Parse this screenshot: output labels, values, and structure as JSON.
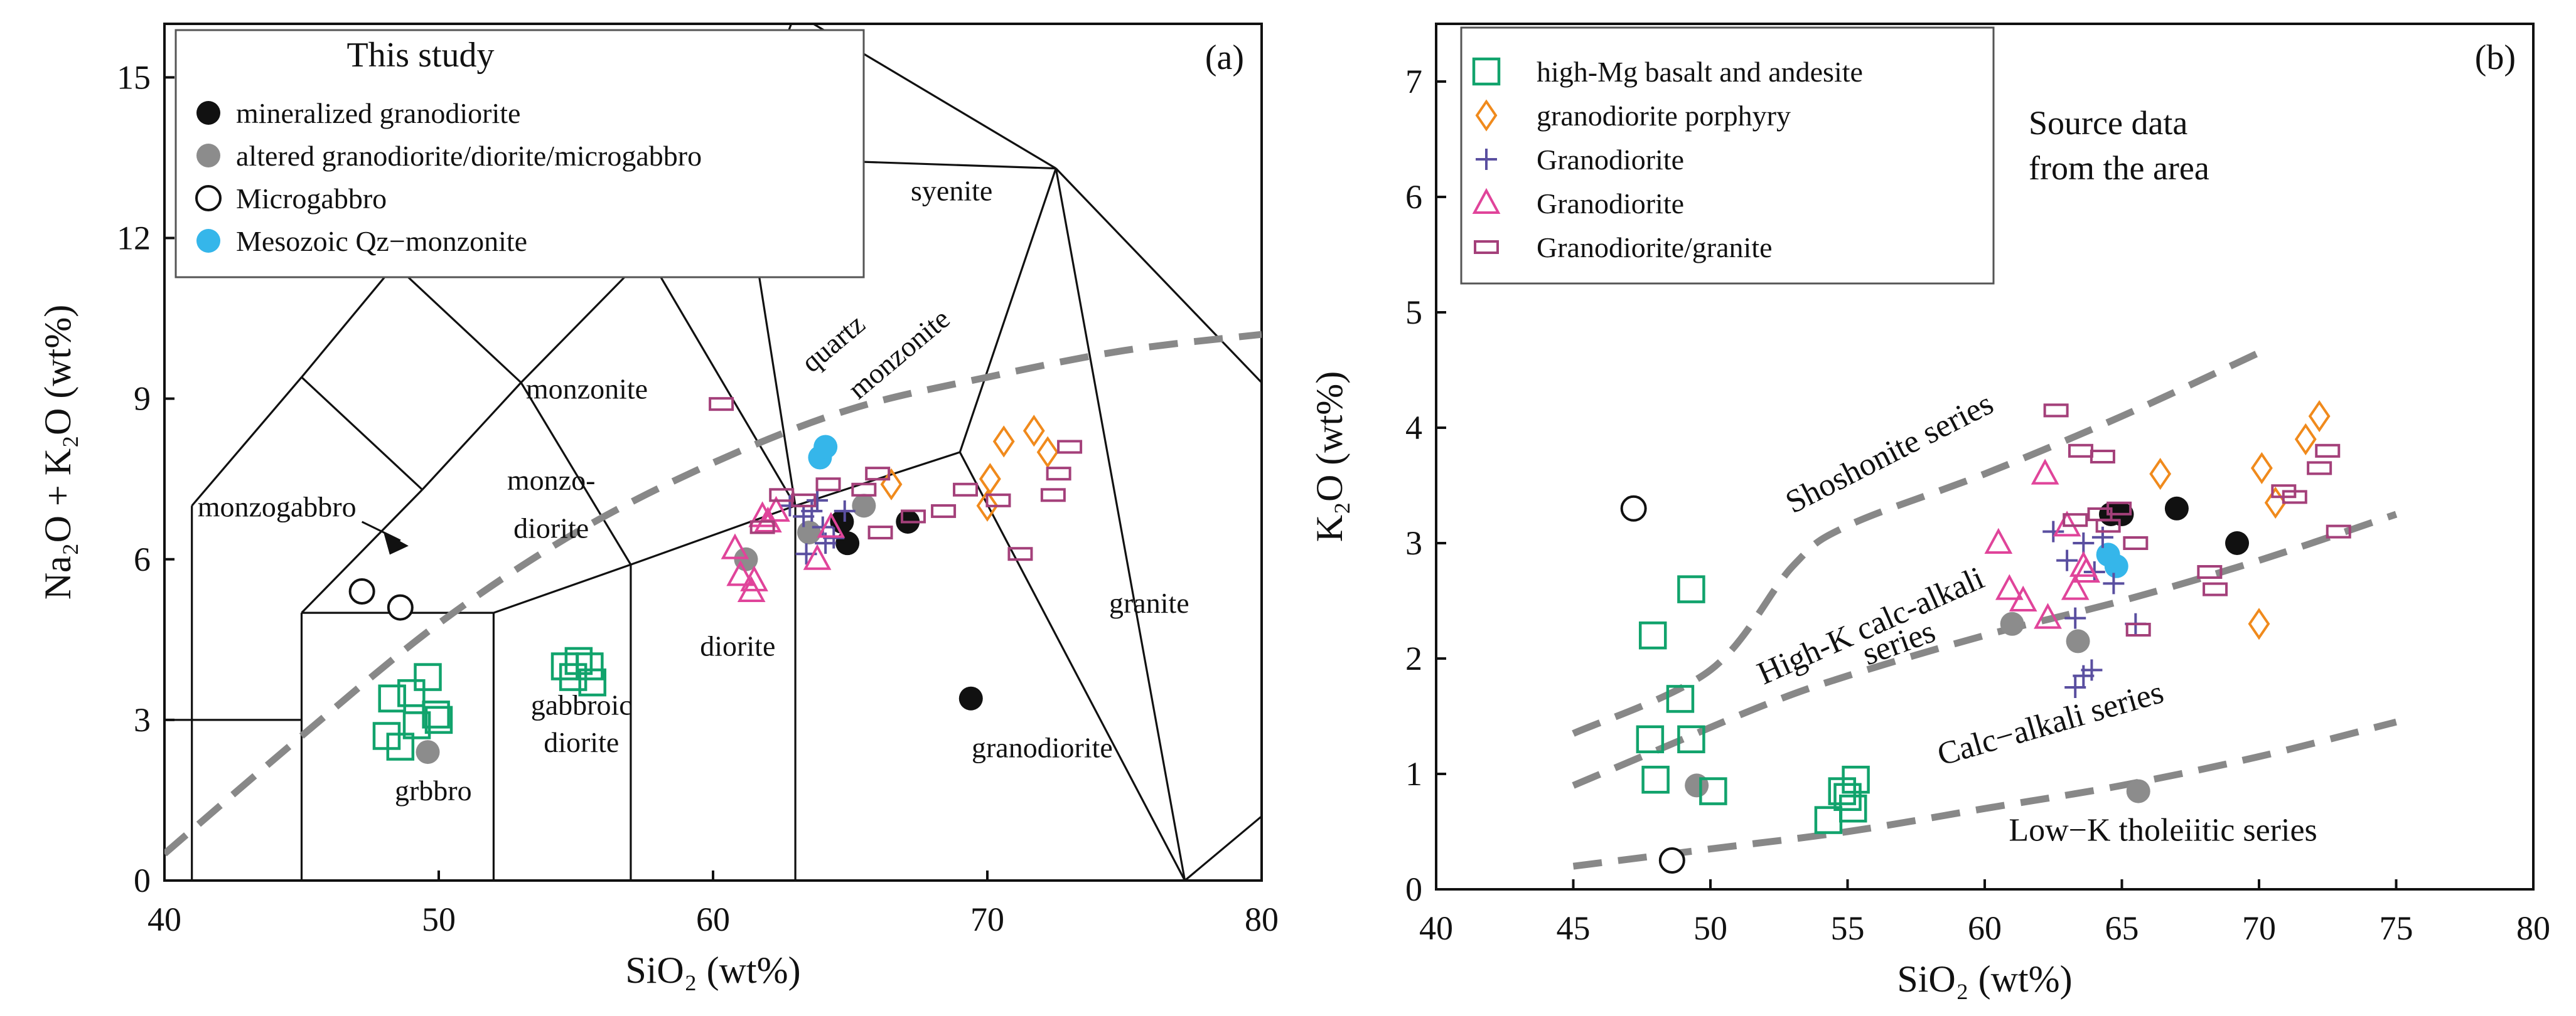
{
  "colors": {
    "mineralized": "#111111",
    "altered": "#8c8c8c",
    "microgabbro": "#ffffff",
    "qz_monzonite": "#35b6ea",
    "high_mg": "#11a36c",
    "porphyry": "#f08a1c",
    "granodiorite_plus": "#5a4fa0",
    "granodiorite_tri": "#e0449a",
    "granite": "#a4407a",
    "dash": "#888888"
  },
  "chart_data": [
    {
      "id": "a",
      "type": "scatter",
      "panel_label": "(a)",
      "xlabel": "SiO₂ (wt%)",
      "ylabel": "Na₂O + K₂O (wt%)",
      "xlim": [
        40,
        80
      ],
      "ylim": [
        0,
        16
      ],
      "xticks": [
        "40",
        "50",
        "60",
        "70",
        "80"
      ],
      "yticks": [
        "0",
        "3",
        "6",
        "9",
        "12",
        "15"
      ],
      "legend": {
        "title": "This study",
        "entries": [
          {
            "label": "mineralized granodiorite",
            "marker": "circle-filled",
            "color": "mineralized"
          },
          {
            "label": "altered granodiorite/diorite/microgabbro",
            "marker": "circle-filled",
            "color": "altered"
          },
          {
            "label": "Microgabbro",
            "marker": "circle-open",
            "color": "mineralized"
          },
          {
            "label": "Mesozoic Qz−monzonite",
            "marker": "circle-filled",
            "color": "qz_monzonite"
          }
        ]
      },
      "fields": [
        {
          "label": "syenite",
          "x": 68.7,
          "y": 12.7
        },
        {
          "label": "monzonite",
          "x": 55.4,
          "y": 9.0
        },
        {
          "label": "monzo-",
          "x": 54.1,
          "y": 7.3
        },
        {
          "label": "diorite",
          "x": 54.1,
          "y": 6.4
        },
        {
          "label": "monzogabbro",
          "x": 44.1,
          "y": 6.8
        },
        {
          "label": "diorite",
          "x": 60.9,
          "y": 4.2
        },
        {
          "label": "gabbroic",
          "x": 55.2,
          "y": 3.1
        },
        {
          "label": "diorite",
          "x": 55.2,
          "y": 2.4
        },
        {
          "label": "grbbro",
          "x": 49.8,
          "y": 1.5
        },
        {
          "label": "granodiorite",
          "x": 72.0,
          "y": 2.3
        },
        {
          "label": "granite",
          "x": 75.9,
          "y": 5.0
        }
      ],
      "rotated_fields": [
        {
          "label": "quartz",
          "x": 64.6,
          "y": 9.9,
          "angle": -40
        },
        {
          "label": "monzonite",
          "x": 67.0,
          "y": 9.7,
          "angle": -40
        }
      ],
      "dashed_curves": [
        {
          "name": "alkaline-subalkaline",
          "x": [
            40,
            45,
            50,
            55,
            60,
            65,
            70,
            75,
            80
          ],
          "y": [
            0.5,
            2.7,
            4.8,
            6.5,
            7.8,
            8.8,
            9.4,
            9.9,
            10.2
          ]
        }
      ],
      "series": [
        {
          "name": "mineralized granodiorite",
          "marker": "circle-filled",
          "color": "mineralized",
          "x": [
            64.7,
            64.9,
            67.1,
            69.4
          ],
          "y": [
            6.7,
            6.3,
            6.7,
            3.4
          ]
        },
        {
          "name": "altered granodiorite/diorite/microgabbro",
          "marker": "circle-filled",
          "color": "altered",
          "x": [
            49.6,
            61.2,
            63.5,
            65.5
          ],
          "y": [
            2.4,
            6.0,
            6.5,
            7.0
          ]
        },
        {
          "name": "Microgabbro",
          "marker": "circle-open",
          "color": "mineralized",
          "x": [
            47.2,
            48.6
          ],
          "y": [
            5.4,
            5.1
          ]
        },
        {
          "name": "Mesozoic Qz−monzonite",
          "marker": "circle-filled",
          "color": "qz_monzonite",
          "x": [
            63.9,
            64.1
          ],
          "y": [
            7.9,
            8.1
          ]
        },
        {
          "name": "high-Mg basalt and andesite",
          "marker": "square-open",
          "color": "high_mg",
          "x": [
            48.3,
            49.0,
            49.6,
            49.9,
            50.0,
            48.1,
            48.6,
            49.2,
            54.6,
            55.1,
            54.9,
            55.5,
            55.6
          ],
          "y": [
            3.4,
            3.5,
            3.8,
            3.1,
            3.0,
            2.7,
            2.5,
            2.9,
            4.0,
            4.1,
            3.8,
            4.0,
            3.7
          ]
        },
        {
          "name": "granodiorite porphyry",
          "marker": "diamond-open",
          "color": "porphyry",
          "x": [
            66.5,
            70.1,
            70.0,
            70.6,
            71.7,
            72.2
          ],
          "y": [
            7.4,
            7.5,
            7.0,
            8.2,
            8.4,
            8.0
          ]
        },
        {
          "name": "Granodiorite (+)",
          "marker": "plus",
          "color": "granodiorite_plus",
          "x": [
            62.8,
            63.3,
            63.6,
            63.8,
            64.0,
            64.4,
            64.8,
            63.4,
            64.1
          ],
          "y": [
            7.0,
            6.8,
            6.9,
            7.1,
            6.6,
            6.4,
            6.9,
            6.1,
            6.3
          ]
        },
        {
          "name": "Granodiorite (△)",
          "marker": "triangle-open",
          "color": "granodiorite_tri",
          "x": [
            60.8,
            61.0,
            61.4,
            61.8,
            62.3,
            62.0,
            63.8,
            64.3,
            61.5
          ],
          "y": [
            6.2,
            5.7,
            5.4,
            6.8,
            6.9,
            6.7,
            6.0,
            6.6,
            5.6
          ]
        },
        {
          "name": "Granodiorite/granite",
          "marker": "rect-open",
          "color": "granite",
          "x": [
            60.3,
            61.8,
            62.5,
            63.3,
            64.2,
            65.5,
            66.1,
            67.3,
            68.4,
            69.2,
            70.4,
            71.2,
            72.6,
            73.0,
            72.4,
            66.0
          ],
          "y": [
            8.9,
            6.6,
            7.2,
            7.1,
            7.4,
            7.3,
            6.5,
            6.8,
            6.9,
            7.3,
            7.1,
            6.1,
            7.6,
            8.1,
            7.2,
            7.6
          ]
        }
      ]
    },
    {
      "id": "b",
      "type": "scatter",
      "panel_label": "(b)",
      "xlabel": "SiO₂ (wt%)",
      "ylabel": "K₂O (wt%)",
      "xlim": [
        40,
        80
      ],
      "ylim": [
        0,
        7.5
      ],
      "xticks": [
        "40",
        "45",
        "50",
        "55",
        "60",
        "65",
        "70",
        "75",
        "80"
      ],
      "yticks": [
        "0",
        "1",
        "2",
        "3",
        "4",
        "5",
        "6",
        "7"
      ],
      "legend": {
        "entries": [
          {
            "label": "high-Mg basalt and andesite",
            "marker": "square-open",
            "color": "high_mg"
          },
          {
            "label": "granodiorite porphyry",
            "marker": "diamond-open",
            "color": "porphyry"
          },
          {
            "label": "Granodiorite",
            "marker": "plus",
            "color": "granodiorite_plus"
          },
          {
            "label": "Granodiorite",
            "marker": "triangle-open",
            "color": "granodiorite_tri"
          },
          {
            "label": "Granodiorite/granite",
            "marker": "rect-open",
            "color": "granite"
          }
        ]
      },
      "annotation": {
        "line1": "Source data",
        "line2": "from the area"
      },
      "series_labels": [
        {
          "label": "Shoshonite series",
          "x": 56.7,
          "y": 3.7,
          "angle": -27
        },
        {
          "label": "High-K  calc-alkali",
          "x": 56.0,
          "y": 2.2,
          "angle": -24
        },
        {
          "label": "series",
          "x": 57.0,
          "y": 2.05,
          "angle": -20
        },
        {
          "label": "Calc−alkali series",
          "x": 62.5,
          "y": 1.35,
          "angle": -16
        },
        {
          "label": "Low−K  tholeiitic series",
          "x": 66.5,
          "y": 0.42,
          "angle": 0
        }
      ],
      "dashed_curves": [
        {
          "name": "shoshonite-highK",
          "x": [
            45,
            50,
            53,
            55,
            60,
            65,
            70
          ],
          "y": [
            1.35,
            1.9,
            2.8,
            3.15,
            3.6,
            4.1,
            4.65
          ]
        },
        {
          "name": "highK-calcalkali",
          "x": [
            45,
            48,
            52,
            55,
            60,
            65,
            70,
            75
          ],
          "y": [
            0.9,
            1.2,
            1.6,
            1.85,
            2.2,
            2.5,
            2.85,
            3.25
          ]
        },
        {
          "name": "calcalkali-lowK",
          "x": [
            45,
            50,
            55,
            60,
            65,
            70,
            75
          ],
          "y": [
            0.2,
            0.35,
            0.5,
            0.7,
            0.9,
            1.15,
            1.45
          ]
        }
      ],
      "series": [
        {
          "name": "mineralized granodiorite",
          "marker": "circle-filled",
          "color": "mineralized",
          "x": [
            64.6,
            65.0,
            67.0,
            69.2
          ],
          "y": [
            3.25,
            3.25,
            3.3,
            3.0
          ]
        },
        {
          "name": "altered granodiorite/diorite/microgabbro",
          "marker": "circle-filled",
          "color": "altered",
          "x": [
            49.5,
            61.0,
            63.4,
            65.6
          ],
          "y": [
            0.9,
            2.3,
            2.15,
            0.85
          ]
        },
        {
          "name": "Microgabbro",
          "marker": "circle-open",
          "color": "mineralized",
          "x": [
            47.2,
            48.6
          ],
          "y": [
            3.3,
            0.25
          ]
        },
        {
          "name": "Mesozoic Qz−monzonite",
          "marker": "circle-filled",
          "color": "qz_monzonite",
          "x": [
            64.5,
            64.8
          ],
          "y": [
            2.9,
            2.8
          ]
        },
        {
          "name": "high-Mg basalt and andesite",
          "marker": "square-open",
          "color": "high_mg",
          "x": [
            49.3,
            47.9,
            48.9,
            47.8,
            49.3,
            48.0,
            50.1,
            54.8,
            55.3,
            54.3,
            55.2,
            55.0
          ],
          "y": [
            2.6,
            2.2,
            1.65,
            1.3,
            1.3,
            0.95,
            0.85,
            0.85,
            0.95,
            0.6,
            0.7,
            0.8
          ]
        },
        {
          "name": "granodiorite porphyry",
          "marker": "diamond-open",
          "color": "porphyry",
          "x": [
            66.4,
            70.1,
            70.6,
            71.7,
            72.2,
            70.0
          ],
          "y": [
            3.6,
            3.65,
            3.35,
            3.9,
            4.1,
            2.3
          ]
        },
        {
          "name": "Granodiorite (+)",
          "marker": "plus",
          "color": "granodiorite_plus",
          "x": [
            62.5,
            63.0,
            63.6,
            64.3,
            64.0,
            64.7,
            63.3,
            63.9,
            63.6,
            63.3,
            65.5
          ],
          "y": [
            3.1,
            2.85,
            3.0,
            3.05,
            2.75,
            2.65,
            1.75,
            1.9,
            1.85,
            2.35,
            2.3
          ]
        },
        {
          "name": "Granodiorite (△)",
          "marker": "triangle-open",
          "color": "granodiorite_tri",
          "x": [
            60.5,
            60.9,
            61.4,
            62.3,
            62.2,
            63.0,
            63.6,
            63.3,
            63.7
          ],
          "y": [
            3.0,
            2.6,
            2.5,
            2.35,
            3.6,
            3.15,
            2.8,
            2.6,
            2.75
          ]
        },
        {
          "name": "Granodiorite/granite",
          "marker": "rect-open",
          "color": "granite",
          "x": [
            62.6,
            63.5,
            64.3,
            64.9,
            63.3,
            64.2,
            64.5,
            65.5,
            65.6,
            68.2,
            68.4,
            70.9,
            71.3,
            72.2,
            72.5,
            72.9
          ],
          "y": [
            4.15,
            3.8,
            3.75,
            3.3,
            3.2,
            3.25,
            3.15,
            3.0,
            2.25,
            2.75,
            2.6,
            3.45,
            3.4,
            3.65,
            3.8,
            3.1
          ]
        }
      ]
    }
  ]
}
